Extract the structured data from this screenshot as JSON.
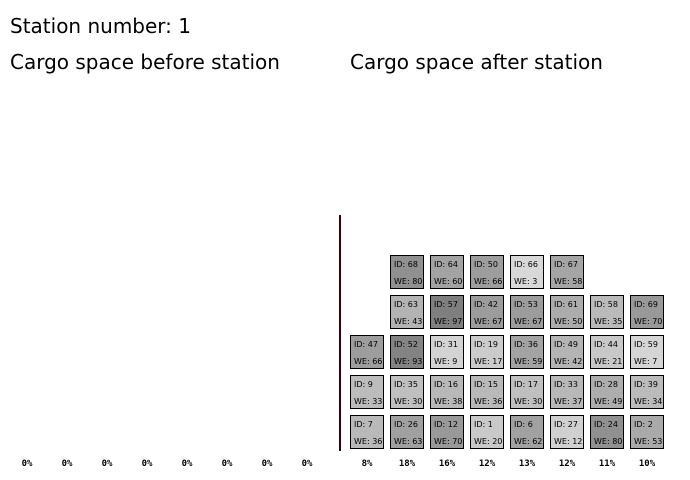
{
  "station_label": "Station number: 1",
  "before_label": "Cargo space before station",
  "after_label": "Cargo space after station",
  "before_percentages": [
    "0%",
    "0%",
    "0%",
    "0%",
    "0%",
    "0%",
    "0%",
    "0%"
  ],
  "after_percentages": [
    "8%",
    "18%",
    "16%",
    "12%",
    "13%",
    "12%",
    "11%",
    "10%"
  ],
  "after_columns": [
    [
      {
        "id": "ID: 7",
        "we": "WE: 36",
        "color": "#b9b9b9"
      },
      {
        "id": "ID: 9",
        "we": "WE: 33",
        "color": "#bcbcbc"
      },
      {
        "id": "ID: 47",
        "we": "WE: 66",
        "color": "#9d9d9d"
      }
    ],
    [
      {
        "id": "ID: 26",
        "we": "WE: 63",
        "color": "#a0a0a0"
      },
      {
        "id": "ID: 35",
        "we": "WE: 30",
        "color": "#bfbfbf"
      },
      {
        "id": "ID: 52",
        "we": "WE: 93",
        "color": "#838383"
      },
      {
        "id": "ID: 63",
        "we": "WE: 43",
        "color": "#b3b3b3"
      },
      {
        "id": "ID: 68",
        "we": "WE: 80",
        "color": "#909090"
      }
    ],
    [
      {
        "id": "ID: 12",
        "we": "WE: 70",
        "color": "#999999"
      },
      {
        "id": "ID: 16",
        "we": "WE: 38",
        "color": "#b8b8b8"
      },
      {
        "id": "ID: 31",
        "we": "WE: 9",
        "color": "#d3d3d3"
      },
      {
        "id": "ID: 57",
        "we": "WE: 97",
        "color": "#7f7f7f"
      },
      {
        "id": "ID: 64",
        "we": "WE: 60",
        "color": "#a3a3a3"
      }
    ],
    [
      {
        "id": "ID: 1",
        "we": "WE: 20",
        "color": "#c9c9c9"
      },
      {
        "id": "ID: 15",
        "we": "WE: 36",
        "color": "#b9b9b9"
      },
      {
        "id": "ID: 19",
        "we": "WE: 17",
        "color": "#cbcbcb"
      },
      {
        "id": "ID: 42",
        "we": "WE: 67",
        "color": "#9c9c9c"
      },
      {
        "id": "ID: 50",
        "we": "WE: 66",
        "color": "#9d9d9d"
      }
    ],
    [
      {
        "id": "ID: 6",
        "we": "WE: 62",
        "color": "#a1a1a1"
      },
      {
        "id": "ID: 17",
        "we": "WE: 30",
        "color": "#bfbfbf"
      },
      {
        "id": "ID: 36",
        "we": "WE: 59",
        "color": "#a3a3a3"
      },
      {
        "id": "ID: 53",
        "we": "WE: 67",
        "color": "#9c9c9c"
      },
      {
        "id": "ID: 66",
        "we": "WE: 3",
        "color": "#d8d8d8"
      }
    ],
    [
      {
        "id": "ID: 27",
        "we": "WE: 12",
        "color": "#d0d0d0"
      },
      {
        "id": "ID: 33",
        "we": "WE: 37",
        "color": "#b8b8b8"
      },
      {
        "id": "ID: 49",
        "we": "WE: 42",
        "color": "#b4b4b4"
      },
      {
        "id": "ID: 61",
        "we": "WE: 50",
        "color": "#acacac"
      },
      {
        "id": "ID: 67",
        "we": "WE: 58",
        "color": "#a5a5a5"
      }
    ],
    [
      {
        "id": "ID: 24",
        "we": "WE: 80",
        "color": "#909090"
      },
      {
        "id": "ID: 28",
        "we": "WE: 49",
        "color": "#adadad"
      },
      {
        "id": "ID: 44",
        "we": "WE: 21",
        "color": "#c8c8c8"
      },
      {
        "id": "ID: 58",
        "we": "WE: 35",
        "color": "#bababa"
      }
    ],
    [
      {
        "id": "ID: 2",
        "we": "WE: 53",
        "color": "#a9a9a9"
      },
      {
        "id": "ID: 39",
        "we": "WE: 34",
        "color": "#bbbbbb"
      },
      {
        "id": "ID: 59",
        "we": "WE: 7",
        "color": "#d5d5d5"
      },
      {
        "id": "ID: 69",
        "we": "WE: 70",
        "color": "#999999"
      }
    ]
  ]
}
